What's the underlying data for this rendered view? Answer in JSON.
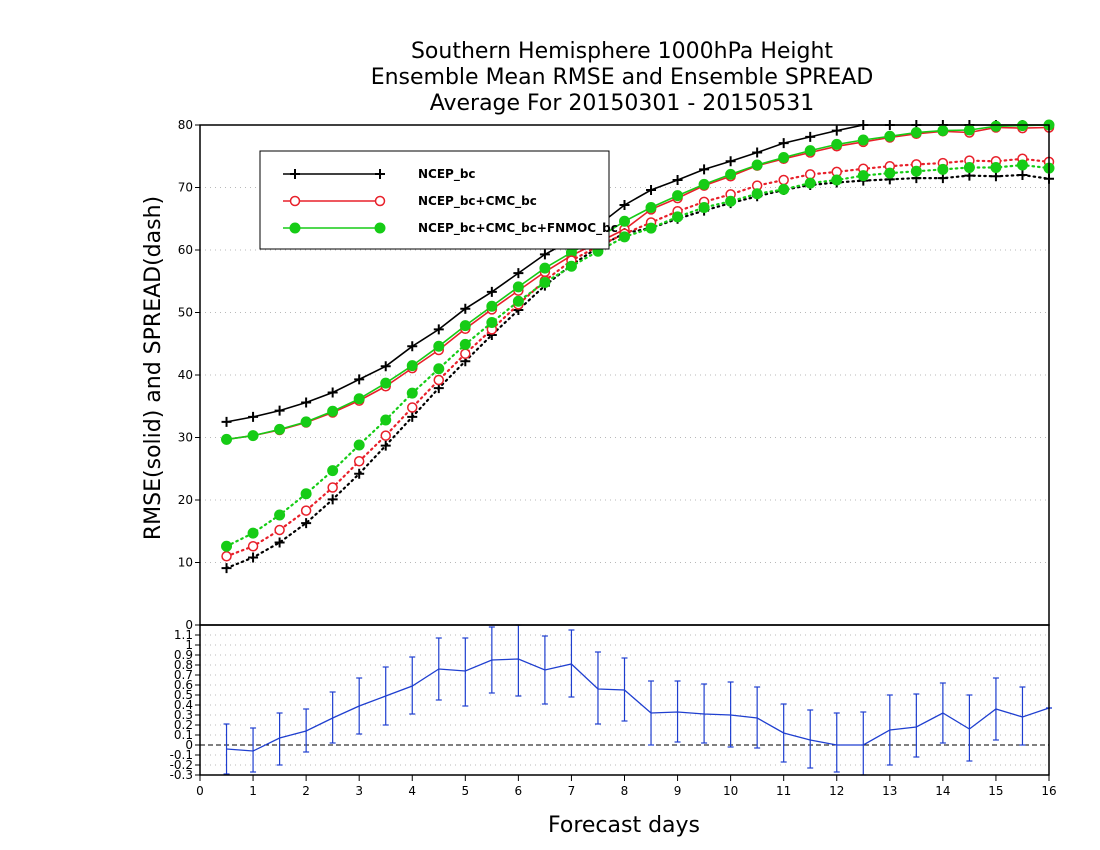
{
  "title_lines": [
    "Southern Hemisphere 1000hPa Height",
    "Ensemble Mean RMSE and Ensemble SPREAD",
    "Average For 20150301 - 20150531"
  ],
  "chart_data": [
    {
      "type": "line",
      "xlabel": "",
      "ylabel": "RMSE(solid) and SPREAD(dash)",
      "xlim": [
        0,
        16
      ],
      "ylim": [
        0,
        80
      ],
      "yticks": [
        10,
        20,
        30,
        40,
        50,
        60,
        70,
        80
      ],
      "grid": true,
      "legend_position": "top-left",
      "x": [
        0.5,
        1,
        1.5,
        2,
        2.5,
        3,
        3.5,
        4,
        4.5,
        5,
        5.5,
        6,
        6.5,
        7,
        7.5,
        8,
        8.5,
        9,
        9.5,
        10,
        10.5,
        11,
        11.5,
        12,
        12.5,
        13,
        13.5,
        14,
        14.5,
        15,
        15.5,
        16
      ],
      "series": [
        {
          "name": "NCEP_bc",
          "style": "solid",
          "marker": "plus",
          "color": "#000000",
          "values": [
            32.5,
            33.3,
            34.3,
            35.6,
            37.2,
            39.3,
            41.4,
            44.6,
            47.3,
            50.6,
            53.3,
            56.3,
            59.3,
            61.6,
            63.9,
            67.2,
            69.6,
            71.2,
            72.9,
            74.2,
            75.6,
            77.1,
            78.1,
            79.1,
            80.0,
            80.0,
            80.0,
            80.0,
            80.0,
            80.0,
            80.0,
            80.0
          ]
        },
        {
          "name": "NCEP_bc+CMC_bc",
          "style": "solid",
          "marker": "open-circle",
          "color": "#e8202a",
          "values": [
            29.7,
            30.3,
            31.2,
            32.4,
            34.0,
            35.9,
            38.2,
            41.1,
            44.0,
            47.4,
            50.5,
            53.5,
            56.5,
            59.1,
            61.2,
            63.3,
            66.5,
            68.3,
            70.3,
            71.8,
            73.5,
            74.6,
            75.6,
            76.6,
            77.3,
            78.0,
            78.6,
            79.0,
            78.8,
            79.6,
            79.5,
            79.6
          ]
        },
        {
          "name": "NCEP_bc+CMC_bc+FNMOC_bc",
          "style": "solid",
          "marker": "filled-circle",
          "color": "#16cc16",
          "values": [
            29.7,
            30.3,
            31.3,
            32.5,
            34.2,
            36.2,
            38.7,
            41.5,
            44.6,
            47.9,
            51.0,
            54.1,
            57.1,
            59.6,
            61.9,
            64.6,
            66.8,
            68.7,
            70.5,
            72.1,
            73.6,
            74.8,
            75.9,
            76.9,
            77.6,
            78.2,
            78.8,
            79.1,
            79.2,
            79.8,
            79.9,
            80.0
          ]
        },
        {
          "name": "NCEP_bc",
          "style": "dotted",
          "marker": "plus",
          "color": "#000000",
          "values": [
            9.1,
            10.8,
            13.2,
            16.3,
            20.1,
            24.2,
            28.7,
            33.3,
            37.9,
            42.2,
            46.4,
            50.4,
            54.3,
            57.6,
            60.4,
            62.7,
            63.5,
            65.0,
            66.3,
            67.5,
            68.6,
            69.6,
            70.4,
            70.8,
            71.1,
            71.3,
            71.5,
            71.5,
            71.9,
            71.8,
            72.0,
            71.4
          ]
        },
        {
          "name": "NCEP_bc+CMC_bc",
          "style": "dotted",
          "marker": "open-circle",
          "color": "#e8202a",
          "values": [
            11.0,
            12.6,
            15.2,
            18.3,
            22.0,
            26.2,
            30.3,
            34.8,
            39.2,
            43.4,
            47.3,
            51.3,
            55.1,
            58.3,
            60.6,
            62.6,
            64.4,
            66.2,
            67.7,
            68.9,
            70.3,
            71.2,
            72.1,
            72.5,
            73.0,
            73.4,
            73.7,
            73.9,
            74.3,
            74.2,
            74.6,
            74.1
          ]
        },
        {
          "name": "NCEP_bc+CMC_bc+FNMOC_bc",
          "style": "dotted",
          "marker": "filled-circle",
          "color": "#16cc16",
          "values": [
            12.6,
            14.7,
            17.6,
            21.0,
            24.7,
            28.8,
            32.8,
            37.1,
            41.0,
            44.9,
            48.4,
            51.8,
            54.8,
            57.4,
            59.8,
            62.1,
            63.5,
            65.3,
            66.8,
            67.8,
            69.0,
            69.7,
            70.7,
            71.2,
            71.9,
            72.3,
            72.6,
            72.9,
            73.2,
            73.2,
            73.6,
            73.1
          ]
        }
      ]
    },
    {
      "type": "line",
      "xlabel": "Forecast days",
      "ylabel": "",
      "xlim": [
        0,
        16
      ],
      "ylim": [
        -0.3,
        1.2
      ],
      "xticks": [
        "0",
        "1",
        "2",
        "3",
        "4",
        "5",
        "6",
        "7",
        "8",
        "9",
        "10",
        "11",
        "12",
        "13",
        "14",
        "15",
        "16"
      ],
      "yticks": [
        "-0.3",
        "-0.2",
        "-0.1",
        "0",
        "0.1",
        "0.2",
        "0.3",
        "0.4",
        "0.5",
        "0.6",
        "0.7",
        "0.8",
        "0.9",
        "1",
        "1.1"
      ],
      "top_tick": "0",
      "grid": true,
      "zero_line": true,
      "series": [
        {
          "style": "solid",
          "color": "#1f3fd0",
          "error_bars": true,
          "x": [
            0.5,
            1,
            1.5,
            2,
            2.5,
            3,
            3.5,
            4,
            4.5,
            5,
            5.5,
            6,
            6.5,
            7,
            7.5,
            8,
            8.5,
            9,
            9.5,
            10,
            10.5,
            11,
            11.5,
            12,
            12.5,
            13,
            13.5,
            14,
            14.5,
            15,
            15.5,
            16
          ],
          "values": [
            -0.04,
            -0.06,
            0.07,
            0.14,
            0.27,
            0.39,
            0.49,
            0.59,
            0.76,
            0.74,
            0.85,
            0.86,
            0.75,
            0.81,
            0.56,
            0.55,
            0.32,
            0.33,
            0.31,
            0.3,
            0.27,
            0.12,
            0.05,
            0.0,
            0.0,
            0.15,
            0.18,
            0.32,
            0.16,
            0.36,
            0.28,
            0.37
          ],
          "lower": [
            -0.29,
            -0.27,
            -0.2,
            -0.07,
            0.02,
            0.11,
            0.2,
            0.31,
            0.45,
            0.39,
            0.52,
            0.49,
            0.41,
            0.48,
            0.21,
            0.24,
            0.0,
            0.03,
            0.02,
            -0.02,
            -0.03,
            -0.17,
            -0.23,
            -0.27,
            -0.3,
            -0.2,
            -0.12,
            0.02,
            -0.16,
            0.05,
            0.0,
            0.37
          ],
          "upper": [
            0.21,
            0.17,
            0.32,
            0.36,
            0.53,
            0.67,
            0.78,
            0.88,
            1.07,
            1.07,
            1.18,
            1.22,
            1.09,
            1.15,
            0.93,
            0.87,
            0.64,
            0.64,
            0.61,
            0.63,
            0.58,
            0.41,
            0.35,
            0.32,
            0.33,
            0.5,
            0.51,
            0.62,
            0.5,
            0.67,
            0.58,
            0.37
          ]
        }
      ]
    }
  ]
}
